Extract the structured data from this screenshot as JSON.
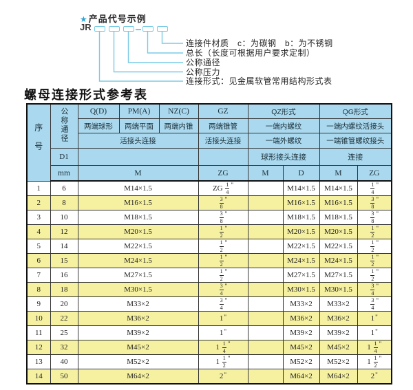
{
  "diagram": {
    "star": "★",
    "heading": "产品代号示例",
    "code_prefix": "JR",
    "labels": [
      "连接件材质　c：为碳钢　b：为不锈钢",
      "总长（长度可根据用户要求定制）",
      "公称通径",
      "公称压力",
      "连接形式：见金属软管常用结构形式表"
    ]
  },
  "table": {
    "title": "螺母连接形式参考表",
    "header": {
      "seq": "序号",
      "dn": "公称通径",
      "d1": "D1",
      "mm": "mm",
      "q_code": "Q(D)",
      "q_ends": "两端球形",
      "pm_code": "PM(A)",
      "pm_ends": "两端平面",
      "nz_code": "NZ(C)",
      "nz_ends": "两端内锥",
      "qpn_conn": "活接头连接",
      "qpn_thread": "M",
      "gz_code": "GZ",
      "gz_ends": "两端锥管",
      "gz_conn": "活接头连接",
      "gz_thread": "ZG",
      "qz_code": "QZ形式",
      "qz_end1": "一端内螺纹",
      "qz_end2": "一端外螺纹",
      "qz_conn": "球形接头连接",
      "qz_t1": "M",
      "qz_t2": "D",
      "qg_code": "QG形式",
      "qg_end1": "一端内螺纹活接头",
      "qg_end2": "一端锥管螺纹接头",
      "qg_conn": "连接",
      "qg_t1": "M",
      "qg_t2": "ZG"
    },
    "rows": [
      [
        "1",
        "6",
        "M14×1.5",
        "ZG 1/4\"",
        "",
        "M14×1.5",
        "M14×1.5",
        "1/4\""
      ],
      [
        "2",
        "8",
        "M16×1.5",
        "3/8\"",
        "",
        "M16×1.5",
        "M16×1.5",
        "3/8\""
      ],
      [
        "3",
        "10",
        "M18×1.5",
        "3/8\"",
        "",
        "M18×1.5",
        "M18×1.5",
        "3/8\""
      ],
      [
        "4",
        "12",
        "M20×1.5",
        "1/2\"",
        "",
        "M20×1.5",
        "M20×1.5",
        "1/2\""
      ],
      [
        "5",
        "14",
        "M22×1.5",
        "1/2\"",
        "",
        "M22×1.5",
        "M22×1.5",
        "1/2\""
      ],
      [
        "6",
        "15",
        "M24×1.5",
        "1/2\"",
        "",
        "M24×1.5",
        "M24×1.5",
        "1/2\""
      ],
      [
        "7",
        "16",
        "M27×1.5",
        "1/2\"",
        "",
        "M27×1.5",
        "M27×1.5",
        "1/2\""
      ],
      [
        "8",
        "18",
        "M30×1.5",
        "3/4\"",
        "",
        "M30×1.5",
        "M30×1.5",
        "3/4\""
      ],
      [
        "9",
        "20",
        "M33×2",
        "3/4\"",
        "",
        "M33×2",
        "M33×2",
        "3/4\""
      ],
      [
        "10",
        "22",
        "M36×2",
        "1\"",
        "",
        "M36×2",
        "M36×2",
        "1\""
      ],
      [
        "11",
        "25",
        "M39×2",
        "1\"",
        "",
        "M39×2",
        "M39×2",
        "1\""
      ],
      [
        "12",
        "32",
        "M45×2",
        "1 1/4\"",
        "",
        "M45×2",
        "M45×2",
        "1 1/4\""
      ],
      [
        "13",
        "40",
        "M52×2",
        "1 1/2\"",
        "",
        "M52×2",
        "M52×2",
        "1 1/2\""
      ],
      [
        "14",
        "50",
        "M64×2",
        "2\"",
        "",
        "M64×2",
        "M64×2",
        "2\""
      ]
    ]
  },
  "colors": {
    "header_blue": "#aad8ee",
    "row_yellow": "#f6f1a1",
    "line_cyan": "#79cbe5",
    "star_blue": "#2aa3d8",
    "border_dark": "#333333"
  }
}
